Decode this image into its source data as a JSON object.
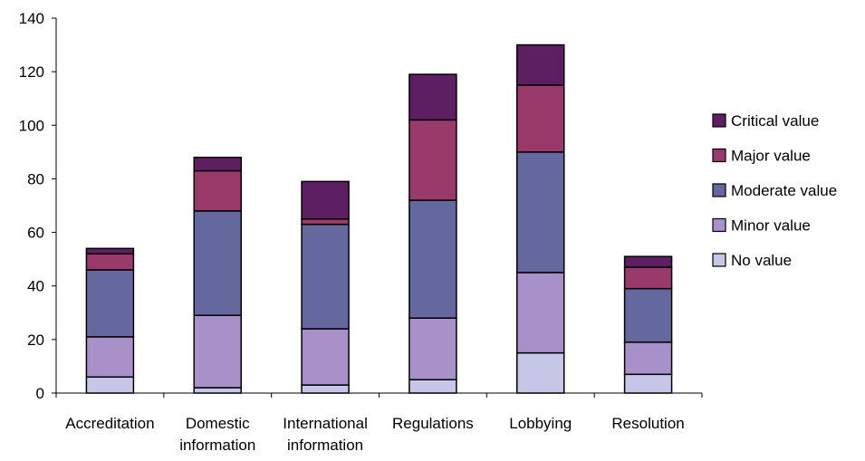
{
  "chart_data": {
    "type": "bar",
    "stacked": true,
    "categories": [
      [
        "Accreditation"
      ],
      [
        "Domestic",
        "information"
      ],
      [
        "International",
        "information"
      ],
      [
        "Regulations"
      ],
      [
        "Lobbying"
      ],
      [
        "Resolution"
      ]
    ],
    "series": [
      {
        "name": "No value",
        "color": "#c6c6e6",
        "values": [
          6,
          2,
          3,
          5,
          15,
          7
        ]
      },
      {
        "name": "Minor value",
        "color": "#a890c8",
        "values": [
          15,
          27,
          21,
          23,
          30,
          12
        ]
      },
      {
        "name": "Moderate value",
        "color": "#65679f",
        "values": [
          25,
          39,
          39,
          44,
          45,
          20
        ]
      },
      {
        "name": "Major value",
        "color": "#993a6b",
        "values": [
          6,
          15,
          2,
          30,
          25,
          8
        ]
      },
      {
        "name": "Critical value",
        "color": "#5d1f62",
        "values": [
          2,
          5,
          14,
          17,
          15,
          4
        ]
      }
    ],
    "ylim": [
      0,
      140
    ],
    "yticks": [
      0,
      20,
      40,
      60,
      80,
      100,
      120,
      140
    ],
    "xlabel": "",
    "ylabel": "",
    "title": "",
    "grid": false,
    "legend": "right",
    "legend_order": [
      "Critical value",
      "Major value",
      "Moderate value",
      "Minor value",
      "No value"
    ]
  }
}
